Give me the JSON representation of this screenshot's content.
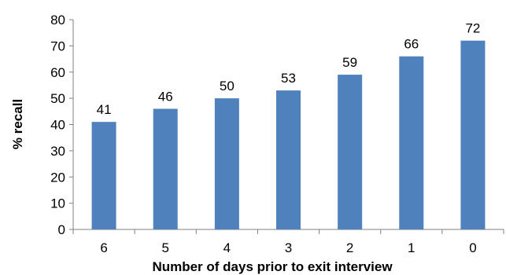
{
  "chart_data": {
    "type": "bar",
    "title": "",
    "xlabel": "Number of days prior to exit interview",
    "ylabel": "% recall",
    "categories": [
      "6",
      "5",
      "4",
      "3",
      "2",
      "1",
      "0"
    ],
    "values": [
      41,
      46,
      50,
      53,
      59,
      66,
      72
    ],
    "data_labels": [
      "41",
      "46",
      "50",
      "53",
      "59",
      "66",
      "72"
    ],
    "ylim": [
      0,
      80
    ],
    "yticks": [
      "0",
      "10",
      "20",
      "30",
      "40",
      "50",
      "60",
      "70",
      "80"
    ],
    "grid": false,
    "legend": "none",
    "bar_color": "#4F81BD"
  }
}
